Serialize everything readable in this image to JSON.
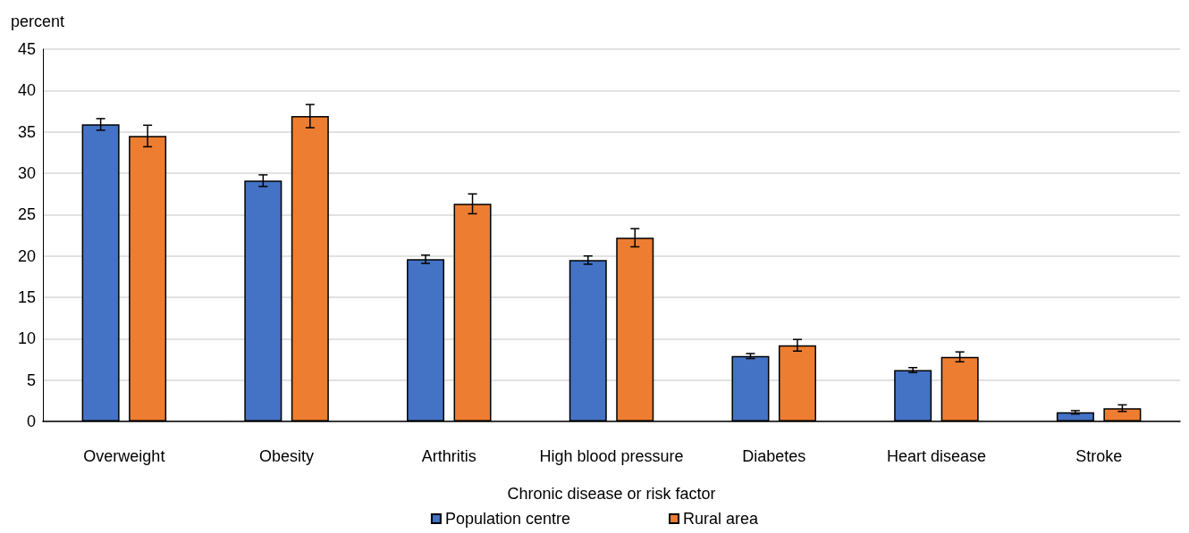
{
  "chart_data": {
    "type": "bar",
    "xlabel": "Chronic disease or risk factor",
    "ylabel": "percent",
    "categories": [
      "Overweight",
      "Obesity",
      "Arthritis",
      "High blood pressure",
      "Diabetes",
      "Heart disease",
      "Stroke"
    ],
    "series": [
      {
        "name": "Population centre",
        "color": "#4472c4",
        "values": [
          35.9,
          29.1,
          19.6,
          19.5,
          7.9,
          6.2,
          1.1
        ],
        "errors": [
          0.7,
          0.7,
          0.5,
          0.5,
          0.3,
          0.3,
          0.2
        ]
      },
      {
        "name": "Rural area",
        "color": "#ed7d31",
        "values": [
          34.5,
          36.9,
          26.3,
          22.2,
          9.2,
          7.8,
          1.6
        ],
        "errors": [
          1.3,
          1.4,
          1.2,
          1.1,
          0.7,
          0.6,
          0.4
        ]
      }
    ],
    "ylim": [
      0,
      45
    ],
    "yticks": [
      0,
      5,
      10,
      15,
      20,
      25,
      30,
      35,
      40,
      45
    ],
    "grid": "y",
    "legend": "bottom"
  }
}
